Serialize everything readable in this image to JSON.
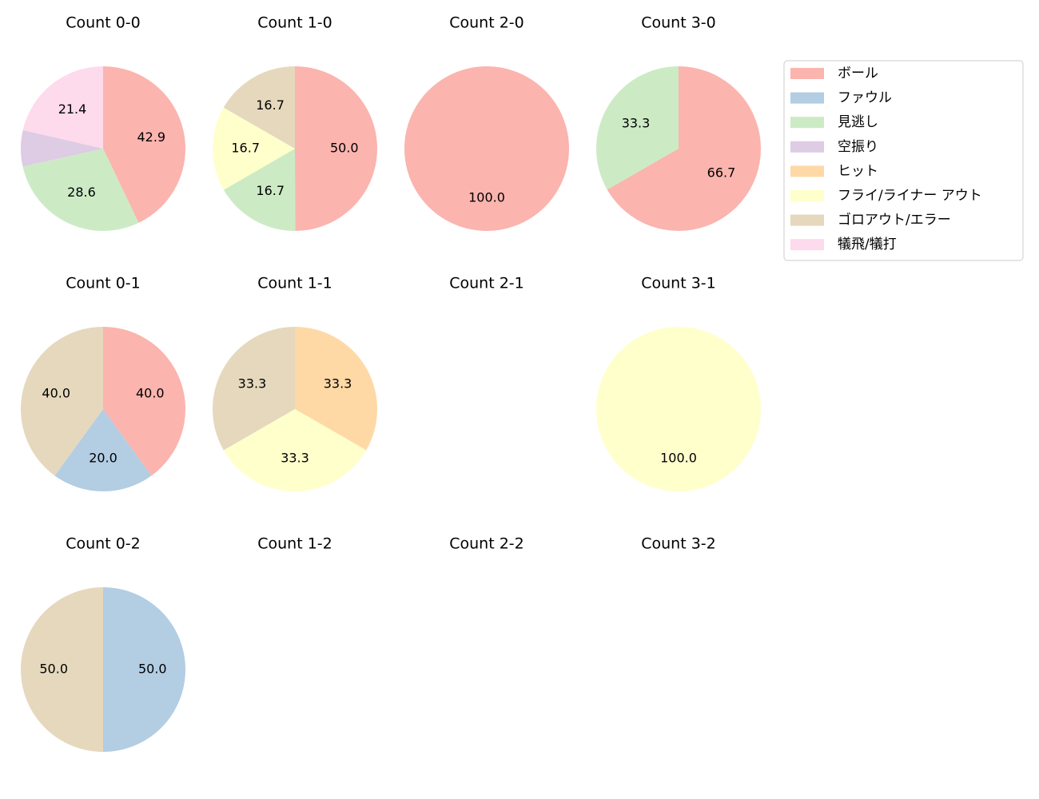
{
  "chart_data": [
    {
      "type": "pie",
      "title": "Count 0-0",
      "categories": [
        "ボール",
        "見逃し",
        "空振り",
        "犠飛/犠打"
      ],
      "values": [
        42.9,
        28.6,
        7.1,
        21.4
      ],
      "value_labels": [
        "42.9",
        "28.6",
        null,
        "21.4"
      ]
    },
    {
      "type": "pie",
      "title": "Count 1-0",
      "categories": [
        "ボール",
        "見逃し",
        "フライ/ライナー アウト",
        "ゴロアウト/エラー"
      ],
      "values": [
        50,
        16.7,
        16.7,
        16.7
      ],
      "value_labels": [
        "50.0",
        "16.7",
        "16.7",
        "16.7"
      ]
    },
    {
      "type": "pie",
      "title": "Count 2-0",
      "categories": [
        "ボール"
      ],
      "values": [
        100
      ],
      "value_labels": [
        "100.0"
      ]
    },
    {
      "type": "pie",
      "title": "Count 3-0",
      "categories": [
        "ボール",
        "見逃し"
      ],
      "values": [
        66.7,
        33.3
      ],
      "value_labels": [
        "66.7",
        "33.3"
      ]
    },
    {
      "type": "pie",
      "title": "Count 0-1",
      "categories": [
        "ボール",
        "ファウル",
        "ゴロアウト/エラー"
      ],
      "values": [
        40,
        20,
        40
      ],
      "value_labels": [
        "40.0",
        "20.0",
        "40.0"
      ]
    },
    {
      "type": "pie",
      "title": "Count 1-1",
      "categories": [
        "ヒット",
        "フライ/ライナー アウト",
        "ゴロアウト/エラー"
      ],
      "values": [
        33.3,
        33.3,
        33.3
      ],
      "value_labels": [
        "33.3",
        "33.3",
        "33.3"
      ]
    },
    {
      "type": "pie",
      "title": "Count 2-1",
      "categories": [],
      "values": [],
      "value_labels": []
    },
    {
      "type": "pie",
      "title": "Count 3-1",
      "categories": [
        "フライ/ライナー アウト"
      ],
      "values": [
        100
      ],
      "value_labels": [
        "100.0"
      ]
    },
    {
      "type": "pie",
      "title": "Count 0-2",
      "categories": [
        "ファウル",
        "ゴロアウト/エラー"
      ],
      "values": [
        50,
        50
      ],
      "value_labels": [
        "50.0",
        "50.0"
      ]
    },
    {
      "type": "pie",
      "title": "Count 1-2",
      "categories": [],
      "values": [],
      "value_labels": []
    },
    {
      "type": "pie",
      "title": "Count 2-2",
      "categories": [],
      "values": [],
      "value_labels": []
    },
    {
      "type": "pie",
      "title": "Count 3-2",
      "categories": [],
      "values": [],
      "value_labels": []
    }
  ],
  "legend": {
    "position": "upper right",
    "entries": [
      {
        "name": "ボール",
        "color": "#fbb4ae"
      },
      {
        "name": "ファウル",
        "color": "#b3cde3"
      },
      {
        "name": "見逃し",
        "color": "#ccebc5"
      },
      {
        "name": "空振り",
        "color": "#decbe4"
      },
      {
        "name": "ヒット",
        "color": "#fed9a6"
      },
      {
        "name": "フライ/ライナー アウト",
        "color": "#ffffcc"
      },
      {
        "name": "ゴロアウト/エラー",
        "color": "#e5d8bd"
      },
      {
        "name": "犠飛/犠打",
        "color": "#fddaec"
      }
    ]
  }
}
